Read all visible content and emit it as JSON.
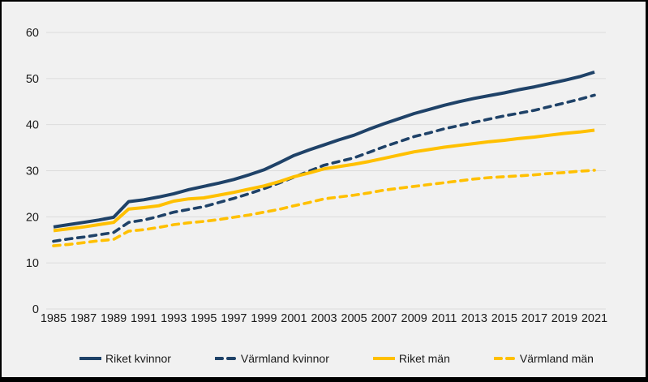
{
  "chart": {
    "background": "#f1f1f1",
    "frame_color": "#000000",
    "gridline_color": "#dcdcdc",
    "text_color": "#1a1a1a",
    "accent_navy": "#1f4268",
    "accent_gold": "#ffc000"
  },
  "chart_data": {
    "type": "line",
    "title": "",
    "xlabel": "",
    "ylabel": "",
    "x": [
      1985,
      1986,
      1987,
      1988,
      1989,
      1990,
      1991,
      1992,
      1993,
      1994,
      1995,
      1996,
      1997,
      1998,
      1999,
      2000,
      2001,
      2002,
      2003,
      2004,
      2005,
      2006,
      2007,
      2008,
      2009,
      2010,
      2011,
      2012,
      2013,
      2014,
      2015,
      2016,
      2017,
      2018,
      2019,
      2020,
      2021
    ],
    "x_tick_labels": [
      "1985",
      "1987",
      "1989",
      "1991",
      "1993",
      "1995",
      "1997",
      "1999",
      "2001",
      "2003",
      "2005",
      "2007",
      "2009",
      "2011",
      "2013",
      "2015",
      "2017",
      "2019",
      "2021"
    ],
    "ylim": [
      0,
      60
    ],
    "y_ticks": [
      0,
      10,
      20,
      30,
      40,
      50,
      60
    ],
    "grid": true,
    "legend_position": "bottom",
    "series": [
      {
        "name": "Riket kvinnor",
        "color": "#1f4268",
        "dash": "solid",
        "values": [
          17.8,
          18.3,
          18.8,
          19.3,
          19.9,
          23.3,
          23.7,
          24.3,
          25.0,
          25.9,
          26.6,
          27.3,
          28.1,
          29.1,
          30.2,
          31.7,
          33.3,
          34.5,
          35.6,
          36.7,
          37.7,
          39.0,
          40.2,
          41.3,
          42.4,
          43.3,
          44.2,
          45.0,
          45.7,
          46.3,
          46.9,
          47.6,
          48.2,
          48.9,
          49.6,
          50.4,
          51.4
        ]
      },
      {
        "name": "Värmland kvinnor",
        "color": "#1f4268",
        "dash": "dashed",
        "values": [
          14.7,
          15.2,
          15.6,
          16.1,
          16.6,
          18.8,
          19.3,
          20.1,
          21.0,
          21.6,
          22.2,
          23.1,
          24.0,
          25.0,
          26.1,
          27.3,
          28.6,
          29.9,
          31.2,
          32.0,
          32.8,
          34.0,
          35.2,
          36.3,
          37.4,
          38.2,
          39.1,
          39.8,
          40.5,
          41.2,
          41.9,
          42.5,
          43.1,
          43.9,
          44.7,
          45.5,
          46.4
        ]
      },
      {
        "name": "Riket män",
        "color": "#ffc000",
        "dash": "solid",
        "values": [
          17.0,
          17.4,
          17.8,
          18.3,
          18.8,
          21.7,
          22.0,
          22.4,
          23.4,
          23.9,
          24.1,
          24.7,
          25.3,
          26.0,
          26.7,
          27.6,
          28.7,
          29.5,
          30.4,
          30.9,
          31.4,
          32.0,
          32.7,
          33.4,
          34.1,
          34.6,
          35.1,
          35.5,
          35.9,
          36.3,
          36.6,
          37.0,
          37.3,
          37.7,
          38.1,
          38.4,
          38.8
        ]
      },
      {
        "name": "Värmland män",
        "color": "#ffc000",
        "dash": "dashed",
        "values": [
          13.7,
          14.0,
          14.4,
          14.8,
          15.1,
          16.9,
          17.2,
          17.7,
          18.3,
          18.7,
          19.0,
          19.4,
          19.9,
          20.4,
          21.0,
          21.6,
          22.4,
          23.1,
          23.9,
          24.3,
          24.7,
          25.2,
          25.8,
          26.2,
          26.6,
          27.0,
          27.4,
          27.8,
          28.2,
          28.5,
          28.7,
          28.9,
          29.1,
          29.4,
          29.6,
          29.9,
          30.1
        ]
      }
    ]
  }
}
